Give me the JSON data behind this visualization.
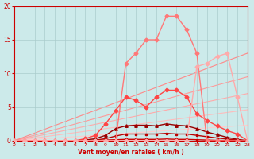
{
  "xlabel": "Vent moyen/en rafales ( km/h )",
  "background_color": "#cceaea",
  "grid_color": "#aacccc",
  "x_ticks": [
    0,
    1,
    2,
    3,
    4,
    5,
    6,
    7,
    8,
    9,
    10,
    11,
    12,
    13,
    14,
    15,
    16,
    17,
    18,
    19,
    20,
    21,
    22,
    23
  ],
  "y_ticks": [
    0,
    5,
    10,
    15,
    20
  ],
  "ylim": [
    0,
    20
  ],
  "xlim": [
    0,
    23
  ],
  "straight_lines": [
    {
      "color": "#ffcccc",
      "linewidth": 0.8,
      "x": [
        0,
        23
      ],
      "y": [
        0,
        2.3
      ]
    },
    {
      "color": "#ffbbbb",
      "linewidth": 0.8,
      "x": [
        0,
        23
      ],
      "y": [
        0,
        4.6
      ]
    },
    {
      "color": "#ffaaaa",
      "linewidth": 0.8,
      "x": [
        0,
        23
      ],
      "y": [
        0,
        7.0
      ]
    },
    {
      "color": "#ff9999",
      "linewidth": 0.8,
      "x": [
        0,
        23
      ],
      "y": [
        0,
        9.5
      ]
    },
    {
      "color": "#ff8888",
      "linewidth": 0.8,
      "x": [
        0,
        23
      ],
      "y": [
        0,
        13.0
      ]
    }
  ],
  "curved_lines": [
    {
      "color": "#cc0000",
      "linewidth": 1.0,
      "marker": "s",
      "markersize": 2.0,
      "x": [
        0,
        1,
        2,
        3,
        4,
        5,
        6,
        7,
        8,
        9,
        10,
        11,
        12,
        13,
        14,
        15,
        16,
        17,
        18,
        19,
        20,
        21,
        22,
        23
      ],
      "y": [
        0,
        0,
        0,
        0,
        0,
        0,
        0,
        0,
        0.05,
        0.1,
        0.15,
        0.2,
        0.2,
        0.2,
        0.2,
        0.25,
        0.2,
        0.2,
        0.15,
        0.1,
        0.05,
        0.05,
        0.02,
        0
      ]
    },
    {
      "color": "#bb0000",
      "linewidth": 1.0,
      "marker": "s",
      "markersize": 2.0,
      "x": [
        0,
        1,
        2,
        3,
        4,
        5,
        6,
        7,
        8,
        9,
        10,
        11,
        12,
        13,
        14,
        15,
        16,
        17,
        18,
        19,
        20,
        21,
        22,
        23
      ],
      "y": [
        0,
        0,
        0,
        0,
        0,
        0,
        0,
        0,
        0.1,
        0.3,
        0.7,
        1.0,
        1.0,
        1.0,
        1.0,
        1.1,
        1.0,
        1.0,
        0.8,
        0.6,
        0.4,
        0.25,
        0.1,
        0
      ]
    },
    {
      "color": "#990000",
      "linewidth": 1.0,
      "marker": "^",
      "markersize": 2.5,
      "x": [
        0,
        1,
        2,
        3,
        4,
        5,
        6,
        7,
        8,
        9,
        10,
        11,
        12,
        13,
        14,
        15,
        16,
        17,
        18,
        19,
        20,
        21,
        22,
        23
      ],
      "y": [
        0,
        0,
        0,
        0,
        0,
        0,
        0,
        0.1,
        0.3,
        0.8,
        1.8,
        2.2,
        2.3,
        2.3,
        2.2,
        2.5,
        2.3,
        2.2,
        1.8,
        1.3,
        0.9,
        0.5,
        0.2,
        0
      ]
    },
    {
      "color": "#ff4444",
      "linewidth": 1.0,
      "marker": "D",
      "markersize": 2.5,
      "x": [
        0,
        1,
        2,
        3,
        4,
        5,
        6,
        7,
        8,
        9,
        10,
        11,
        12,
        13,
        14,
        15,
        16,
        17,
        18,
        19,
        20,
        21,
        22,
        23
      ],
      "y": [
        0,
        0,
        0,
        0,
        0,
        0,
        0,
        0.3,
        0.8,
        2.5,
        4.5,
        6.5,
        6.0,
        5.0,
        6.5,
        7.5,
        7.5,
        6.5,
        4.0,
        3.0,
        2.2,
        1.5,
        1.0,
        0
      ]
    },
    {
      "color": "#ff7777",
      "linewidth": 1.0,
      "marker": "D",
      "markersize": 2.5,
      "x": [
        0,
        1,
        2,
        3,
        4,
        5,
        6,
        7,
        8,
        9,
        10,
        11,
        12,
        13,
        14,
        15,
        16,
        17,
        18,
        19,
        20,
        21,
        22,
        23
      ],
      "y": [
        0,
        0,
        0,
        0,
        0,
        0,
        0,
        0,
        0,
        0,
        0,
        11.5,
        13.0,
        15.0,
        15.0,
        18.5,
        18.5,
        16.5,
        13.0,
        0,
        0,
        0,
        0,
        0
      ]
    },
    {
      "color": "#ffaaaa",
      "linewidth": 1.0,
      "marker": "D",
      "markersize": 2.5,
      "x": [
        0,
        1,
        2,
        3,
        4,
        5,
        6,
        7,
        8,
        9,
        10,
        11,
        12,
        13,
        14,
        15,
        16,
        17,
        18,
        19,
        20,
        21,
        22,
        23
      ],
      "y": [
        0,
        0,
        0,
        0,
        0,
        0,
        0,
        0,
        0,
        0,
        0,
        0,
        0,
        0,
        0,
        0,
        0,
        0,
        11.0,
        11.5,
        12.5,
        13.0,
        6.5,
        0
      ]
    }
  ]
}
